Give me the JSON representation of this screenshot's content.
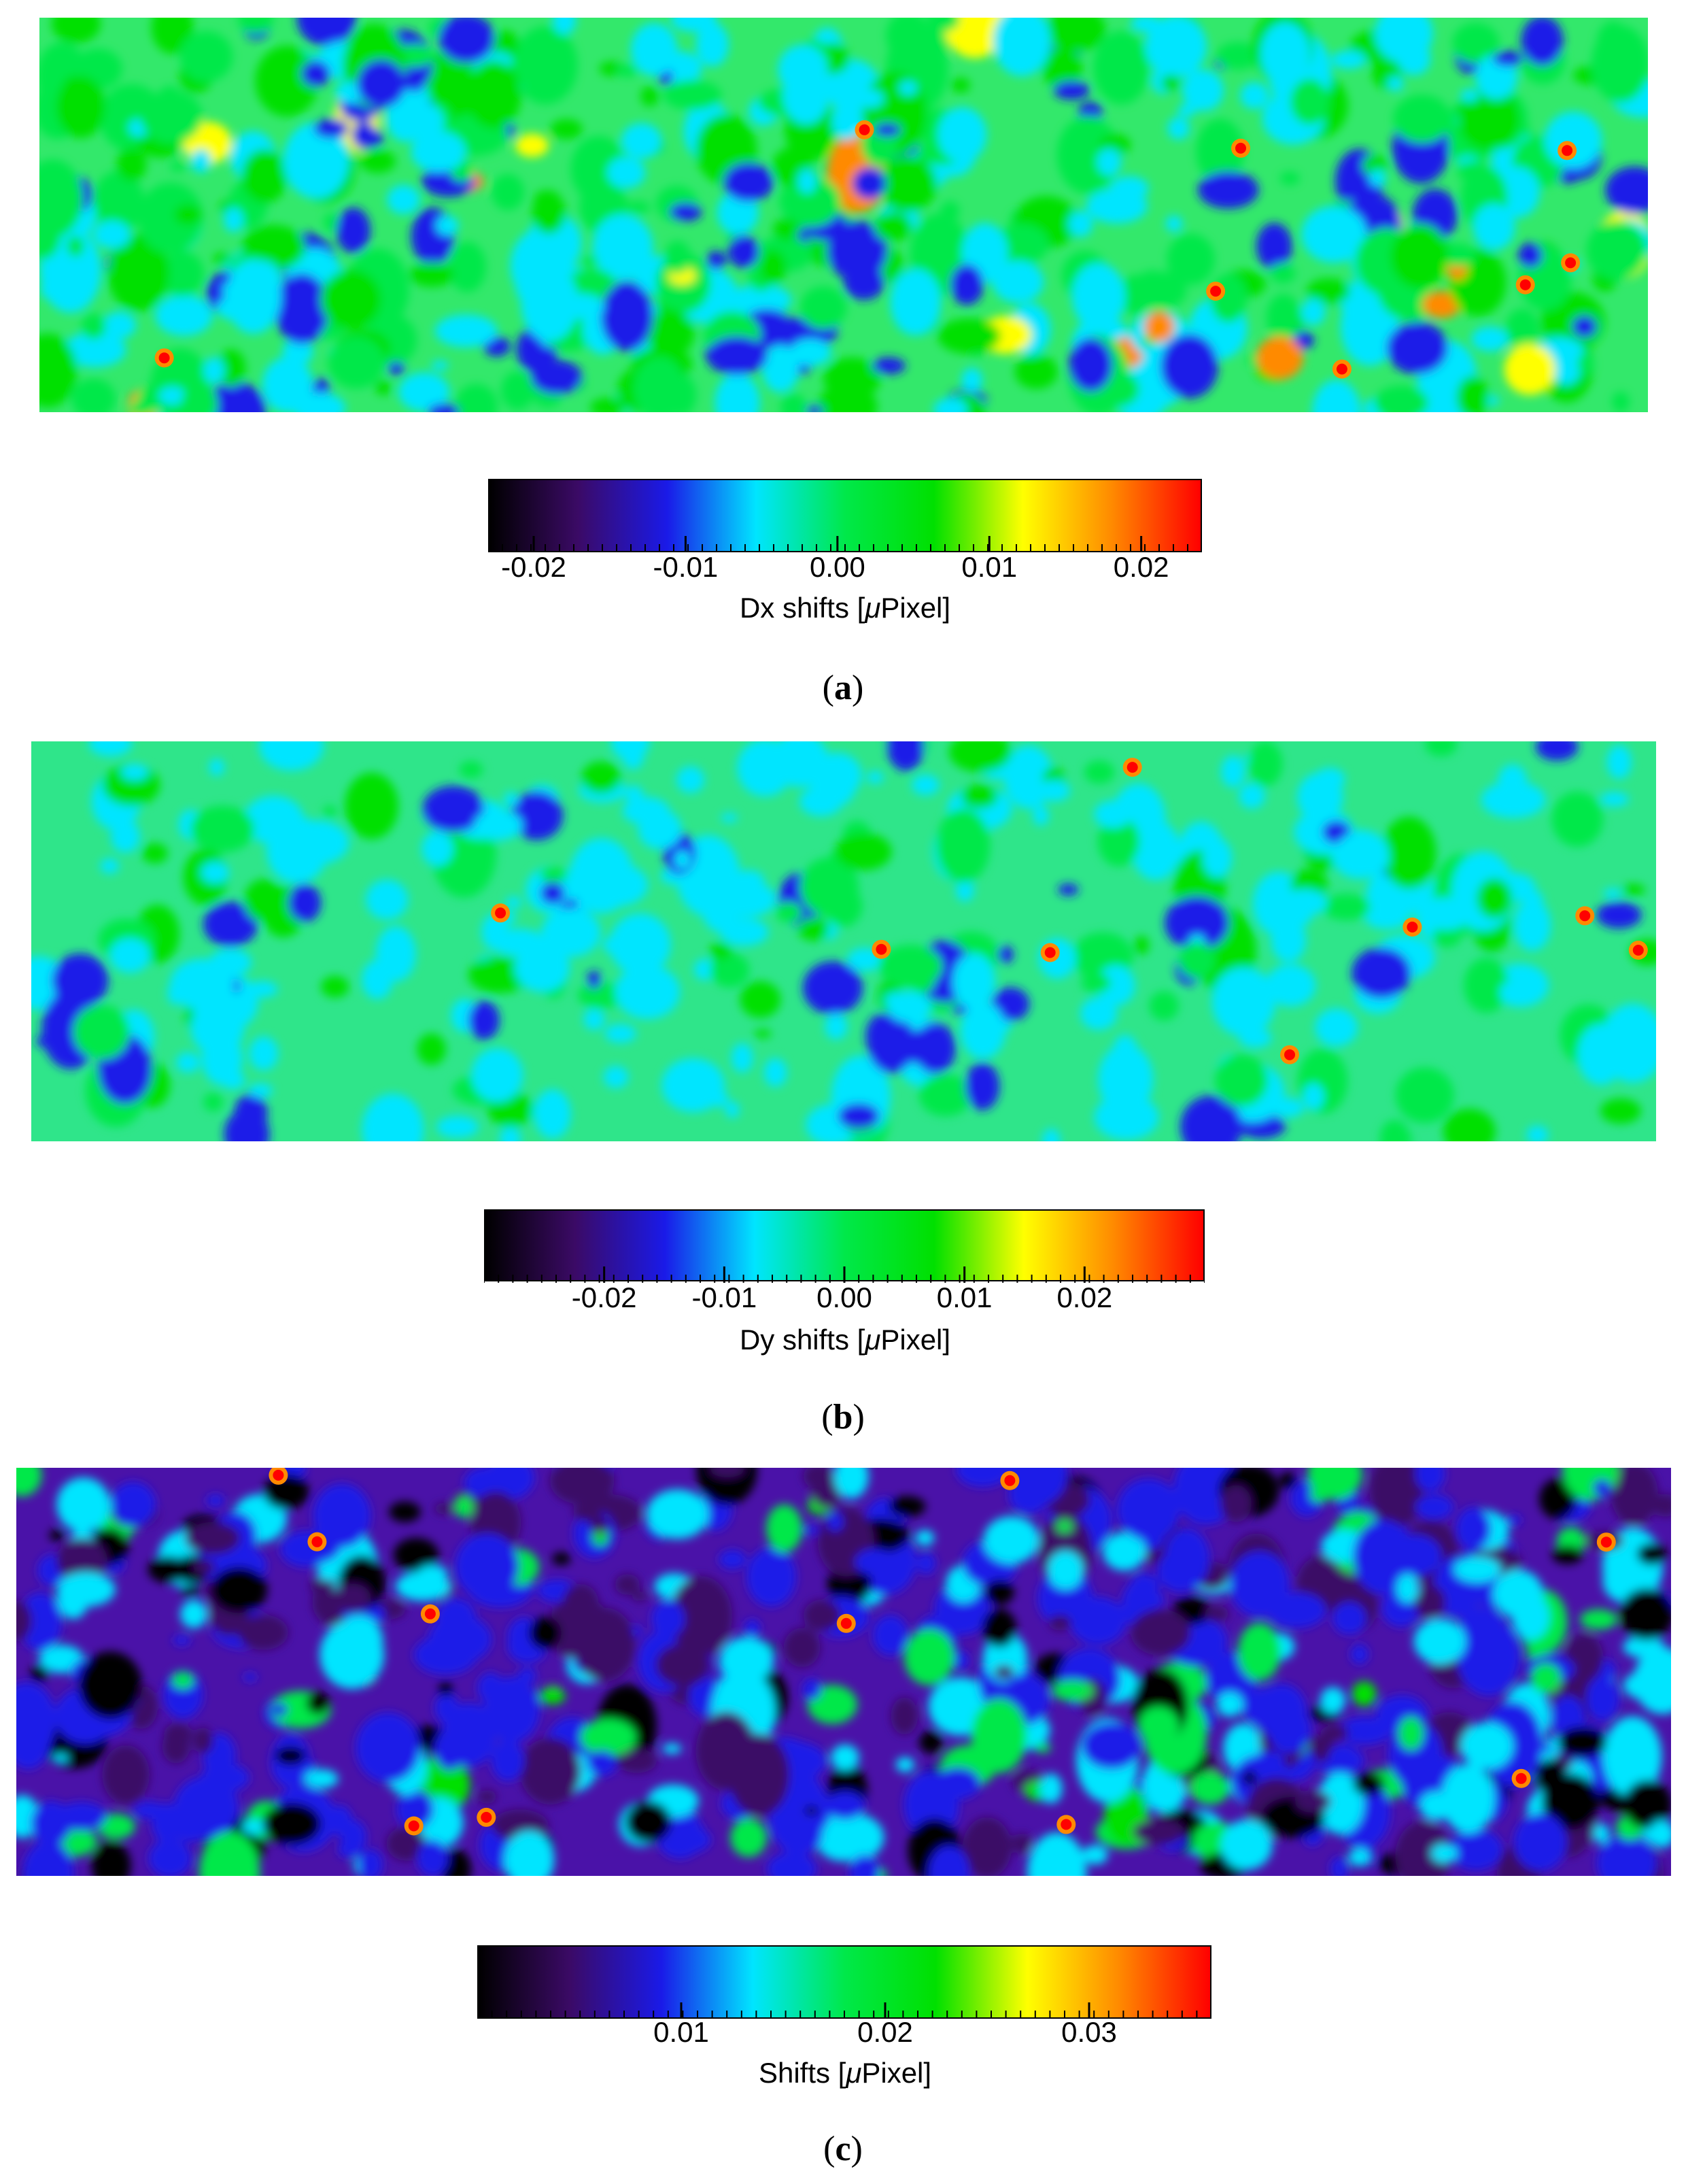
{
  "chart_data": [
    {
      "type": "heatmap",
      "panel": "a",
      "caption_letter": "a",
      "colorbar_label_prefix": "Dx shifts  [",
      "colorbar_label_unit": "μ",
      "colorbar_label_suffix": "Pixel]",
      "colorbar_range": [
        -0.023,
        0.024
      ],
      "tick_values": [
        -0.02,
        -0.01,
        0.0,
        0.01,
        0.02
      ],
      "tick_labels": [
        "-0.02",
        "-0.01",
        "0.00",
        "0.01",
        "0.02"
      ],
      "colormap": [
        "#000000",
        "#3b0a66",
        "#1a1ae8",
        "#00e5ff",
        "#00e84a",
        "#00e000",
        "#ffff00",
        "#ff8a00",
        "#ff0000"
      ],
      "background_level": 0.5,
      "dominant_color": "#33e86b"
    },
    {
      "type": "heatmap",
      "panel": "b",
      "caption_letter": "b",
      "colorbar_label_prefix": "Dy shifts  [",
      "colorbar_label_unit": "μ",
      "colorbar_label_suffix": "Pixel]",
      "colorbar_range": [
        -0.03,
        0.03
      ],
      "tick_values": [
        -0.02,
        -0.01,
        0.0,
        0.01,
        0.02
      ],
      "tick_labels": [
        "-0.02",
        "-0.01",
        "0.00",
        "0.01",
        "0.02"
      ],
      "colormap": [
        "#000000",
        "#3b0a66",
        "#1a1ae8",
        "#00e5ff",
        "#00e84a",
        "#00e000",
        "#ffff00",
        "#ff8a00",
        "#ff0000"
      ],
      "background_level": 0.5,
      "dominant_color": "#2fe58a"
    },
    {
      "type": "heatmap",
      "panel": "c",
      "caption_letter": "c",
      "colorbar_label_prefix": "Shifts  [",
      "colorbar_label_unit": "μ",
      "colorbar_label_suffix": "Pixel]",
      "colorbar_range": [
        0.0,
        0.036
      ],
      "tick_values": [
        0.01,
        0.02,
        0.03
      ],
      "tick_labels": [
        "0.01",
        "0.02",
        "0.03"
      ],
      "colormap": [
        "#000000",
        "#3b0a66",
        "#1a1ae8",
        "#00e5ff",
        "#00e84a",
        "#00e000",
        "#ffff00",
        "#ff8a00",
        "#ff0000"
      ],
      "background_level": 0.15,
      "dominant_color": "#4a12a8"
    }
  ]
}
